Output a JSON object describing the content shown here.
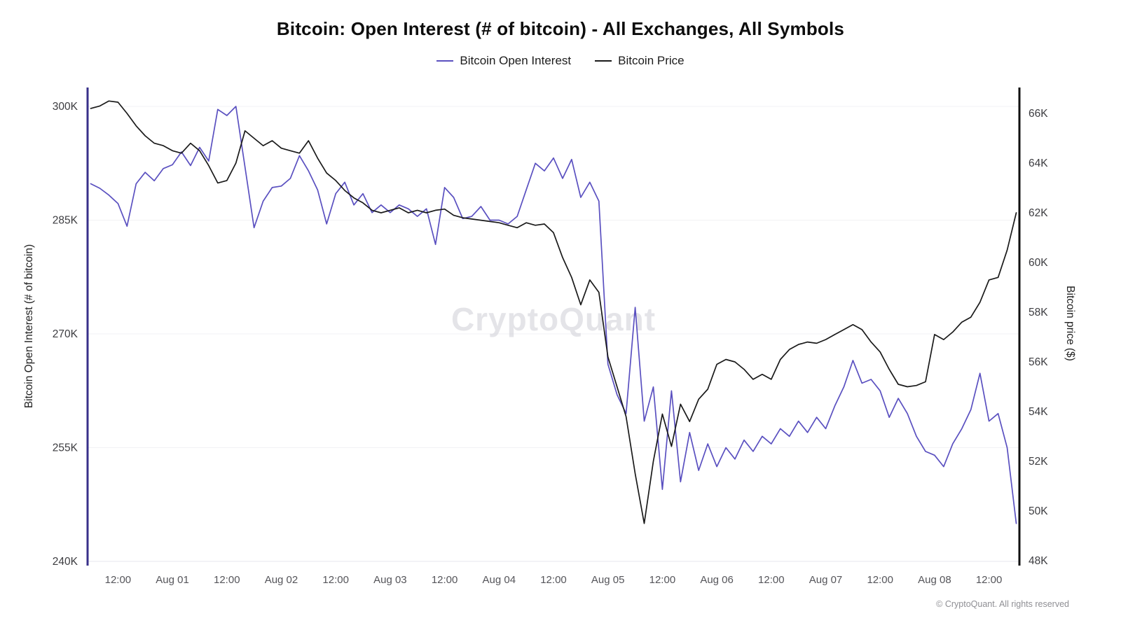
{
  "page": {
    "title": "Bitcoin: Open Interest (# of bitcoin) - All Exchanges, All Symbols",
    "watermark": "CryptoQuant",
    "copyright": "© CryptoQuant. All rights reserved"
  },
  "legend": {
    "items": [
      {
        "label": "Bitcoin Open Interest",
        "color": "#5a50c0"
      },
      {
        "label": "Bitcoin Price",
        "color": "#1a1a1a"
      }
    ]
  },
  "chart_data": {
    "type": "line",
    "title": "Bitcoin: Open Interest (# of bitcoin) - All Exchanges, All Symbols",
    "xlabel": "",
    "x_unit": "hours since Jul 31 00:00 (UTC)",
    "grid": "horizontal, faint",
    "legend_position": "top-center",
    "x_ticks": [
      {
        "t": 12,
        "label": "12:00"
      },
      {
        "t": 24,
        "label": "Aug 01"
      },
      {
        "t": 36,
        "label": "12:00"
      },
      {
        "t": 48,
        "label": "Aug 02"
      },
      {
        "t": 60,
        "label": "12:00"
      },
      {
        "t": 72,
        "label": "Aug 03"
      },
      {
        "t": 84,
        "label": "12:00"
      },
      {
        "t": 96,
        "label": "Aug 04"
      },
      {
        "t": 108,
        "label": "12:00"
      },
      {
        "t": 120,
        "label": "Aug 05"
      },
      {
        "t": 132,
        "label": "12:00"
      },
      {
        "t": 144,
        "label": "Aug 06"
      },
      {
        "t": 156,
        "label": "12:00"
      },
      {
        "t": 168,
        "label": "Aug 07"
      },
      {
        "t": 180,
        "label": "12:00"
      },
      {
        "t": 192,
        "label": "Aug 08"
      },
      {
        "t": 204,
        "label": "12:00"
      }
    ],
    "x": [
      6,
      8,
      10,
      12,
      14,
      16,
      18,
      20,
      22,
      24,
      26,
      28,
      30,
      32,
      34,
      36,
      38,
      40,
      42,
      44,
      46,
      48,
      50,
      52,
      54,
      56,
      58,
      60,
      62,
      64,
      66,
      68,
      70,
      72,
      74,
      76,
      78,
      80,
      82,
      84,
      86,
      88,
      90,
      92,
      94,
      96,
      98,
      100,
      102,
      104,
      106,
      108,
      110,
      112,
      114,
      116,
      118,
      120,
      122,
      124,
      126,
      128,
      130,
      132,
      134,
      136,
      138,
      140,
      142,
      144,
      146,
      148,
      150,
      152,
      154,
      156,
      158,
      160,
      162,
      164,
      166,
      168,
      170,
      172,
      174,
      176,
      178,
      180,
      182,
      184,
      186,
      188,
      190,
      192,
      194,
      196,
      198,
      200,
      202,
      204,
      206,
      208,
      210
    ],
    "series": [
      {
        "name": "Bitcoin Open Interest",
        "axis": "left",
        "unit": "K BTC",
        "color": "#5a50c0",
        "values": [
          289.8,
          289.2,
          288.3,
          287.2,
          284.2,
          289.8,
          291.3,
          290.2,
          291.8,
          292.3,
          294.0,
          292.2,
          294.6,
          292.8,
          299.6,
          298.8,
          300.0,
          292.0,
          284.0,
          287.5,
          289.3,
          289.5,
          290.5,
          293.5,
          291.5,
          289.0,
          284.5,
          288.5,
          290.0,
          287.0,
          288.5,
          286.0,
          287.0,
          286.0,
          287.0,
          286.5,
          285.5,
          286.5,
          281.8,
          289.3,
          288.0,
          285.2,
          285.5,
          286.8,
          285.0,
          285.0,
          284.5,
          285.5,
          289.0,
          292.5,
          291.5,
          293.2,
          290.5,
          293.0,
          288.0,
          290.0,
          287.5,
          266.0,
          262.0,
          259.5,
          273.5,
          258.5,
          263.0,
          249.5,
          262.5,
          250.5,
          257.0,
          252.0,
          255.5,
          252.5,
          255.0,
          253.5,
          256.0,
          254.5,
          256.5,
          255.5,
          257.5,
          256.5,
          258.5,
          257.0,
          259.0,
          257.5,
          260.5,
          263.0,
          266.5,
          263.5,
          264.0,
          262.5,
          259.0,
          261.5,
          259.5,
          256.5,
          254.5,
          254.0,
          252.5,
          255.5,
          257.5,
          260.0,
          264.8,
          258.5,
          259.5,
          255.0,
          245.0
        ]
      },
      {
        "name": "Bitcoin Price",
        "axis": "right",
        "unit": "K USD",
        "color": "#1a1a1a",
        "values": [
          66.2,
          66.3,
          66.5,
          66.45,
          66.0,
          65.5,
          65.1,
          64.8,
          64.7,
          64.5,
          64.4,
          64.8,
          64.5,
          63.9,
          63.2,
          63.3,
          64.0,
          65.3,
          65.0,
          64.7,
          64.9,
          64.6,
          64.5,
          64.4,
          64.9,
          64.2,
          63.6,
          63.3,
          62.9,
          62.6,
          62.4,
          62.1,
          62.0,
          62.1,
          62.2,
          62.0,
          62.1,
          62.0,
          62.1,
          62.15,
          61.9,
          61.8,
          61.75,
          61.7,
          61.65,
          61.6,
          61.5,
          61.4,
          61.6,
          61.5,
          61.55,
          61.2,
          60.2,
          59.4,
          58.3,
          59.3,
          58.8,
          56.2,
          55.0,
          53.8,
          51.5,
          49.5,
          52.0,
          53.9,
          52.6,
          54.3,
          53.6,
          54.5,
          54.9,
          55.9,
          56.1,
          56.0,
          55.7,
          55.3,
          55.5,
          55.3,
          56.1,
          56.5,
          56.7,
          56.8,
          56.75,
          56.9,
          57.1,
          57.3,
          57.5,
          57.3,
          56.8,
          56.4,
          55.7,
          55.1,
          55.0,
          55.05,
          55.2,
          57.1,
          56.9,
          57.2,
          57.6,
          57.8,
          58.4,
          59.3,
          59.4,
          60.5,
          62.0
        ]
      }
    ],
    "left_axis": {
      "label": "Bitcoin Open Interest (# of bitcoin)",
      "tick_labels": [
        "300K",
        "285K",
        "270K",
        "255K",
        "240K"
      ],
      "tick_values": [
        300,
        285,
        270,
        255,
        240
      ],
      "range": [
        240,
        300
      ],
      "spine_color": "#38308a"
    },
    "right_axis": {
      "label": "Bitcoin price ($)",
      "tick_labels": [
        "66K",
        "64K",
        "62K",
        "60K",
        "58K",
        "56K",
        "54K",
        "52K",
        "50K",
        "48K"
      ],
      "tick_values": [
        66,
        64,
        62,
        60,
        58,
        56,
        54,
        52,
        50,
        48
      ],
      "range": [
        48,
        66
      ],
      "spine_color": "#111111"
    }
  }
}
